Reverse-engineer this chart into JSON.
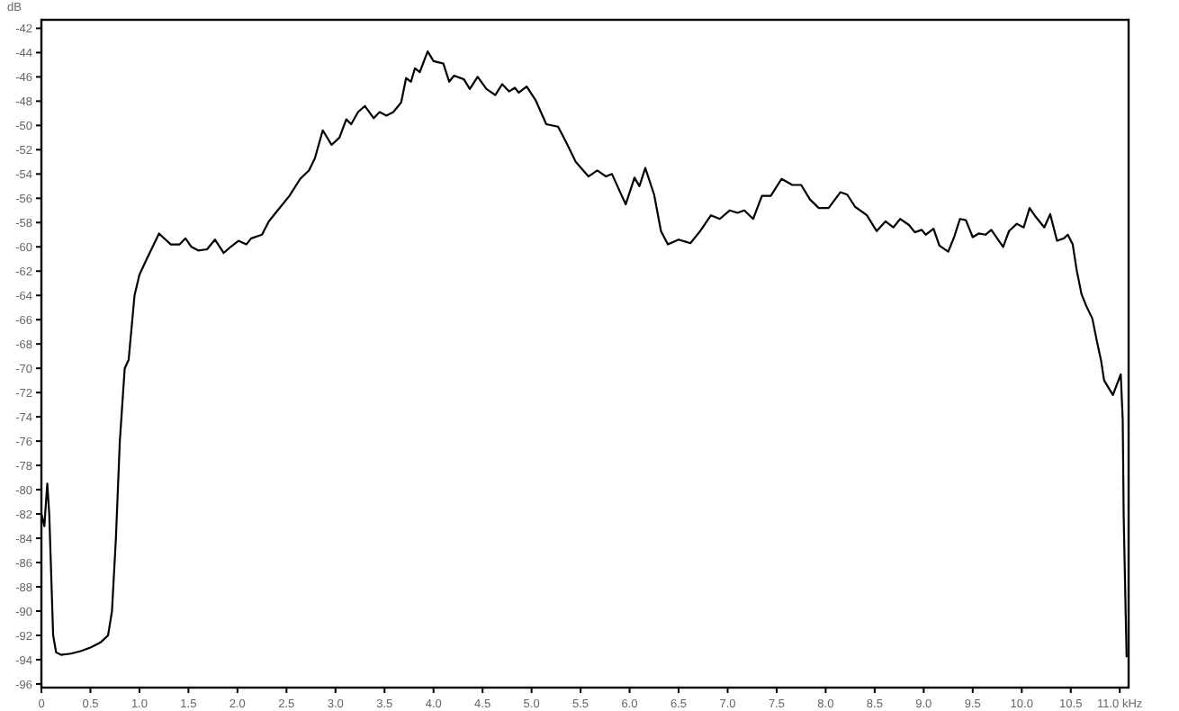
{
  "chart_data": {
    "type": "line",
    "ylabel": "dB",
    "xlim": [
      0,
      11.09
    ],
    "ylim": [
      -96.3,
      -41.3
    ],
    "xticks": [
      0,
      0.5,
      {
        "value": 1,
        "label": "1.0"
      },
      1.5,
      {
        "value": 2,
        "label": "2.0"
      },
      2.5,
      {
        "value": 3,
        "label": "3.0"
      },
      3.5,
      {
        "value": 4,
        "label": "4.0"
      },
      4.5,
      {
        "value": 5,
        "label": "5.0"
      },
      5.5,
      {
        "value": 6,
        "label": "6.0"
      },
      6.5,
      {
        "value": 7,
        "label": "7.0"
      },
      7.5,
      {
        "value": 8,
        "label": "8.0"
      },
      8.5,
      {
        "value": 9,
        "label": "9.0"
      },
      9.5,
      {
        "value": 10,
        "label": "10.0"
      },
      10.5,
      {
        "value": 11,
        "label": "11.0 kHz"
      }
    ],
    "yticks": [
      -42,
      -44,
      -46,
      -48,
      -50,
      -52,
      -54,
      -56,
      -58,
      -60,
      -62,
      -64,
      -66,
      -68,
      -70,
      -72,
      -74,
      -76,
      -78,
      -80,
      -82,
      -84,
      -86,
      -88,
      -90,
      -92,
      -94,
      -96
    ],
    "grid": false,
    "marker": "none",
    "line_style": "solid",
    "series": [
      {
        "color": "#000000",
        "x": [
          0,
          0.03,
          0.06,
          0.08,
          0.12,
          0.15,
          0.2,
          0.3,
          0.4,
          0.5,
          0.6,
          0.68,
          0.72,
          0.76,
          0.8,
          0.85,
          0.89,
          0.95,
          1.0,
          1.08,
          1.2,
          1.32,
          1.41,
          1.47,
          1.53,
          1.6,
          1.69,
          1.77,
          1.86,
          1.93,
          2.01,
          2.09,
          2.14,
          2.25,
          2.32,
          2.41,
          2.53,
          2.64,
          2.73,
          2.79,
          2.87,
          2.96,
          3.04,
          3.11,
          3.16,
          3.23,
          3.3,
          3.39,
          3.45,
          3.52,
          3.59,
          3.67,
          3.72,
          3.77,
          3.81,
          3.86,
          3.94,
          4.0,
          4.1,
          4.16,
          4.21,
          4.31,
          4.37,
          4.45,
          4.54,
          4.63,
          4.7,
          4.77,
          4.83,
          4.87,
          4.95,
          5.04,
          5.15,
          5.27,
          5.36,
          5.45,
          5.58,
          5.67,
          5.76,
          5.82,
          5.96,
          6.05,
          6.1,
          6.16,
          6.25,
          6.32,
          6.39,
          6.5,
          6.62,
          6.72,
          6.83,
          6.92,
          7.02,
          7.1,
          7.17,
          7.26,
          7.35,
          7.44,
          7.55,
          7.66,
          7.75,
          7.84,
          7.93,
          8.03,
          8.15,
          8.22,
          8.3,
          8.42,
          8.52,
          8.61,
          8.69,
          8.76,
          8.85,
          8.91,
          8.98,
          9.02,
          9.1,
          9.16,
          9.25,
          9.31,
          9.37,
          9.43,
          9.5,
          9.56,
          9.63,
          9.69,
          9.74,
          9.81,
          9.87,
          9.95,
          10.02,
          10.08,
          10.14,
          10.23,
          10.29,
          10.36,
          10.43,
          10.47,
          10.52,
          10.56,
          10.61,
          10.66,
          10.72,
          10.77,
          10.81,
          10.84,
          10.93,
          11.01,
          11.03,
          11.04,
          11.06,
          11.07
        ],
        "values": [
          -82,
          -83,
          -79.5,
          -82,
          -92,
          -93.4,
          -93.6,
          -93.5,
          -93.3,
          -93,
          -92.6,
          -92,
          -90,
          -84,
          -76,
          -70,
          -69.3,
          -64,
          -62.3,
          -60.9,
          -58.9,
          -59.8,
          -59.8,
          -59.3,
          -60,
          -60.3,
          -60.2,
          -59.4,
          -60.5,
          -60,
          -59.5,
          -59.8,
          -59.3,
          -59,
          -57.9,
          -57,
          -55.8,
          -54.4,
          -53.7,
          -52.7,
          -50.4,
          -51.6,
          -51,
          -49.5,
          -49.9,
          -48.9,
          -48.4,
          -49.4,
          -48.9,
          -49.2,
          -48.9,
          -48.1,
          -46.1,
          -46.4,
          -45.3,
          -45.6,
          -43.9,
          -44.7,
          -44.9,
          -46.4,
          -45.9,
          -46.2,
          -47,
          -46,
          -47,
          -47.5,
          -46.6,
          -47.2,
          -46.9,
          -47.3,
          -46.8,
          -47.9,
          -49.9,
          -50.1,
          -51.5,
          -53,
          -54.2,
          -53.7,
          -54.2,
          -54,
          -56.5,
          -54.3,
          -55,
          -53.5,
          -55.7,
          -58.7,
          -59.8,
          -59.4,
          -59.7,
          -58.7,
          -57.4,
          -57.7,
          -57,
          -57.2,
          -57,
          -57.7,
          -55.8,
          -55.8,
          -54.4,
          -54.9,
          -54.9,
          -56.1,
          -56.8,
          -56.8,
          -55.5,
          -55.7,
          -56.7,
          -57.4,
          -58.7,
          -57.9,
          -58.4,
          -57.7,
          -58.2,
          -58.8,
          -58.6,
          -59,
          -58.5,
          -59.9,
          -60.4,
          -59.2,
          -57.7,
          -57.8,
          -59.2,
          -58.9,
          -59,
          -58.6,
          -59.2,
          -60,
          -58.7,
          -58.1,
          -58.4,
          -56.8,
          -57.5,
          -58.4,
          -57.3,
          -59.5,
          -59.3,
          -59,
          -59.8,
          -61.9,
          -63.9,
          -64.9,
          -65.9,
          -67.9,
          -69.4,
          -71,
          -72.2,
          -70.5,
          -74.2,
          -82.2,
          -90.1,
          -93.8
        ]
      }
    ]
  }
}
